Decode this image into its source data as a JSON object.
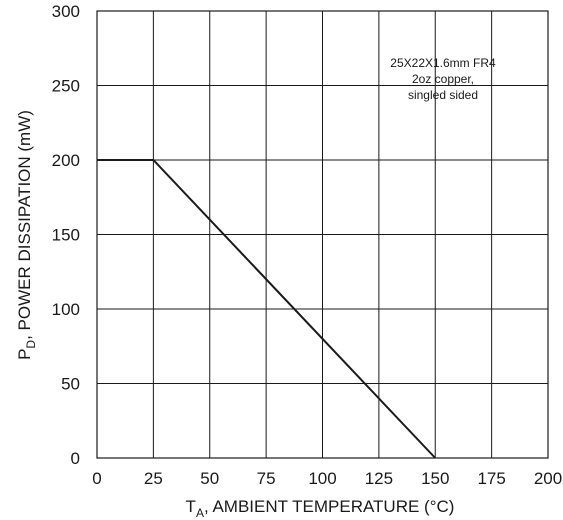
{
  "chart_data": {
    "type": "line",
    "xlabel": {
      "main": "T",
      "sub": "A",
      "rest": ", AMBIENT TEMPERATURE (°C)"
    },
    "ylabel": {
      "main": "P",
      "sub": "D",
      "rest": ", POWER DISSIPATION (mW)"
    },
    "xlim": [
      0,
      200
    ],
    "ylim": [
      0,
      300
    ],
    "x_ticks": [
      0,
      25,
      50,
      75,
      100,
      125,
      150,
      175,
      200
    ],
    "y_ticks": [
      0,
      50,
      100,
      150,
      200,
      250,
      300
    ],
    "grid": true,
    "series": [
      {
        "x": [
          0,
          25,
          150
        ],
        "y": [
          200,
          200,
          0
        ]
      }
    ],
    "annotation": {
      "lines": [
        "25X22X1.6mm FR4",
        "2oz copper,",
        "singled sided"
      ]
    }
  }
}
